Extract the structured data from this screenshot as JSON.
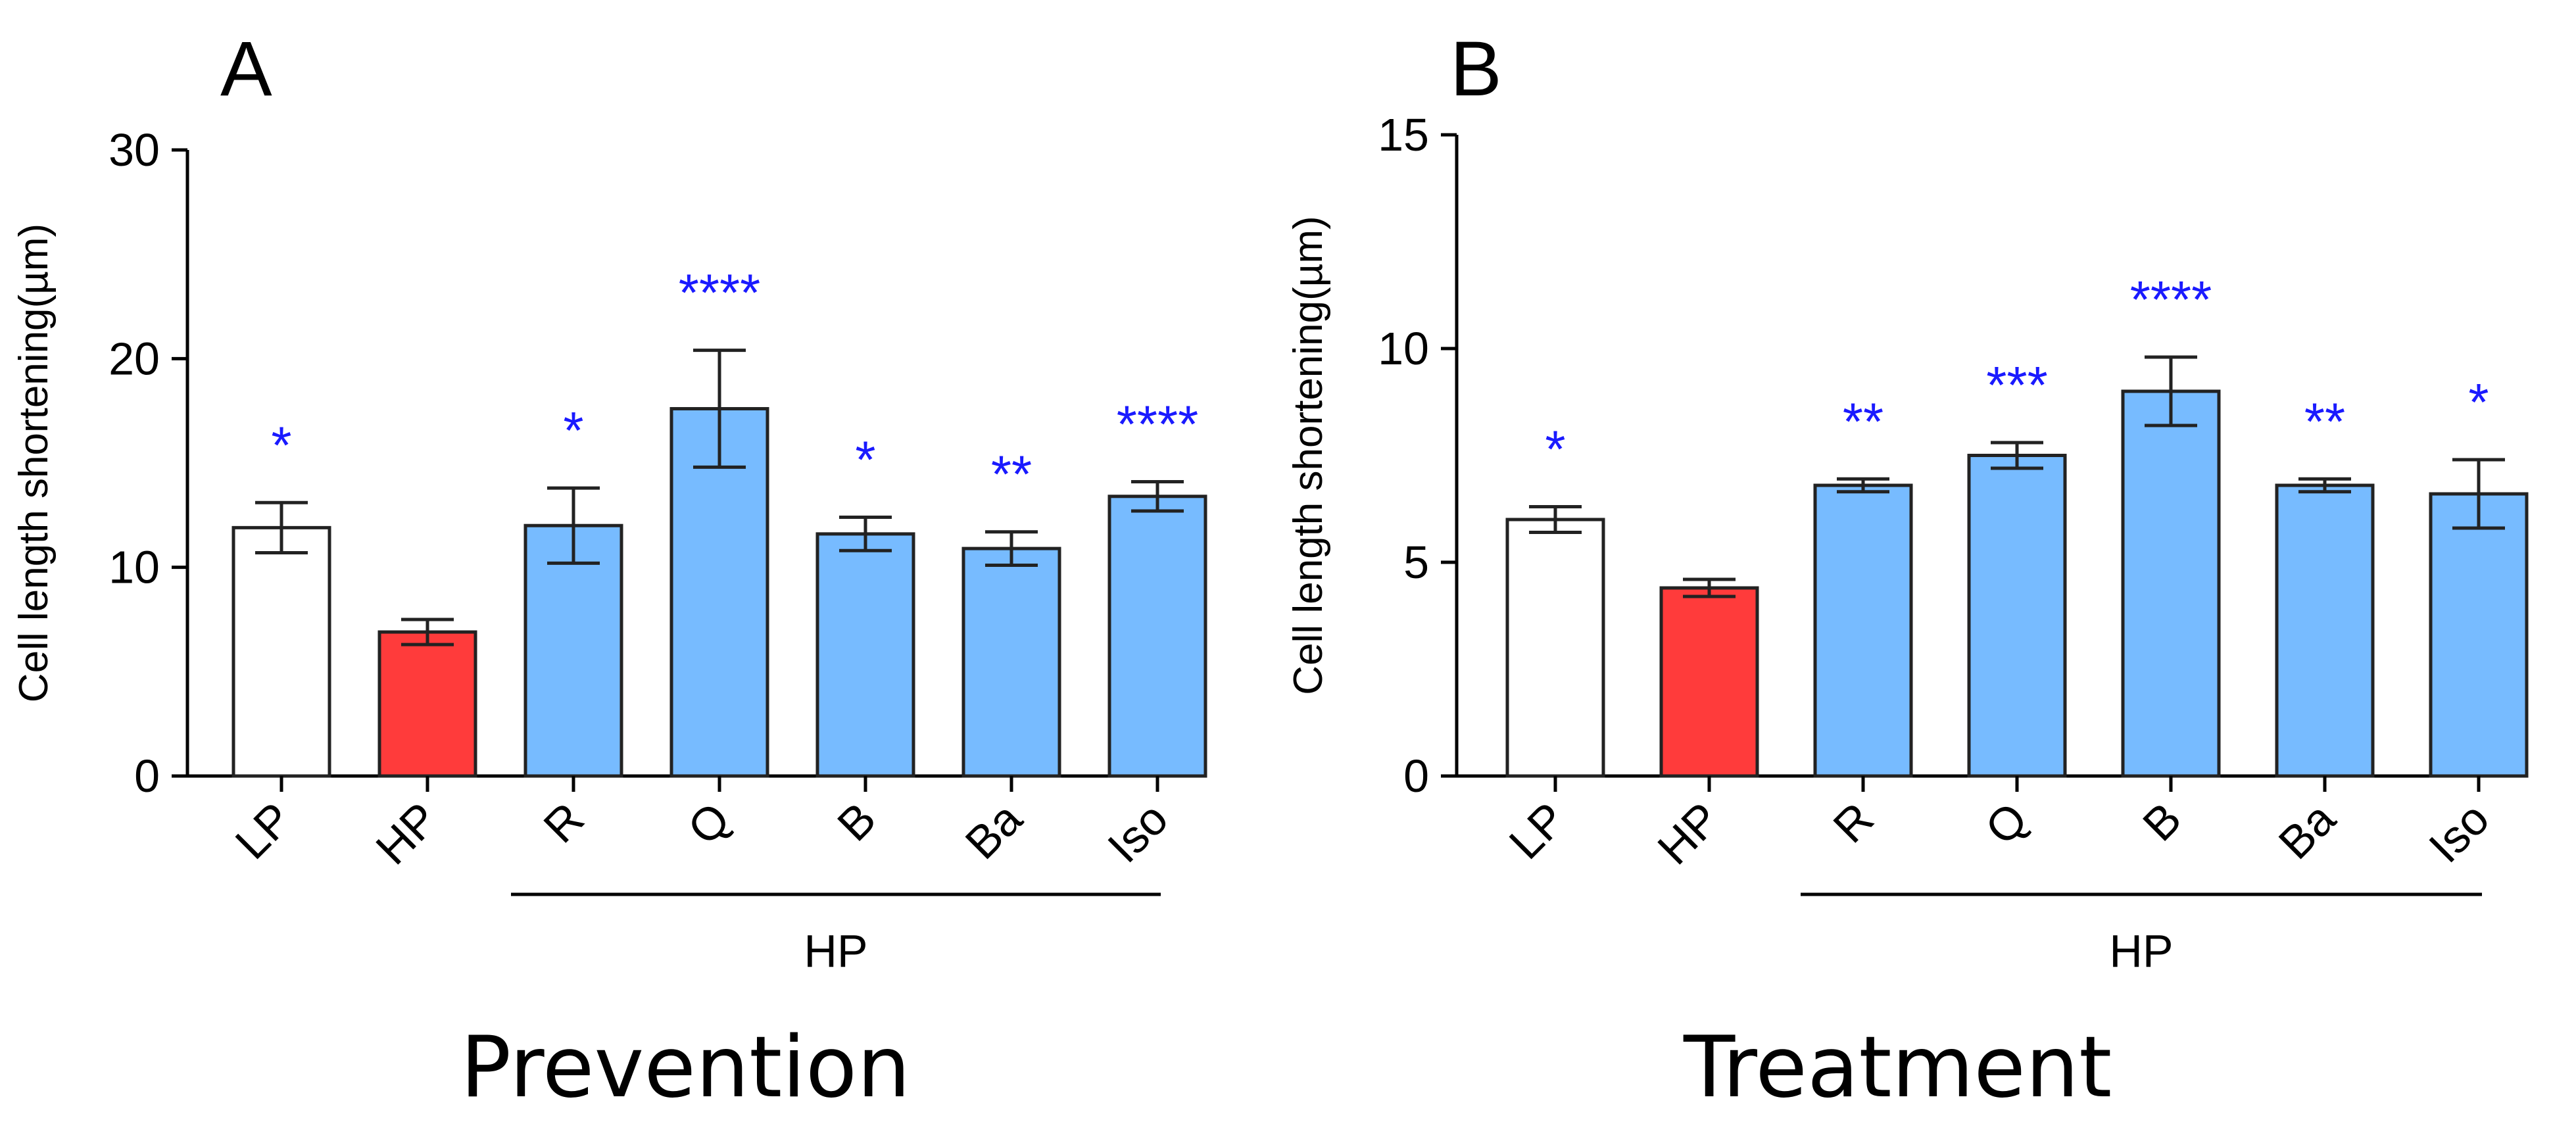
{
  "colors": {
    "control": "#ffffff",
    "hp": "#ff3b3b",
    "treated": "#77bbff",
    "significance": "#1a1aff",
    "axis": "#000000"
  },
  "panels": {
    "A": {
      "letter": "A",
      "caption": "Prevention"
    },
    "B": {
      "letter": "B",
      "caption": "Treatment"
    }
  },
  "chart_data": [
    {
      "panel": "A",
      "type": "bar",
      "title": "Prevention",
      "xlabel": "",
      "ylabel": "Cell length shortening(µm)",
      "ylim": [
        0,
        30
      ],
      "yticks": [
        0,
        10,
        20,
        30
      ],
      "categories": [
        "LP",
        "HP",
        "R",
        "Q",
        "B",
        "Ba",
        "Iso"
      ],
      "values": [
        11.9,
        6.9,
        12.0,
        17.6,
        11.6,
        10.9,
        13.4
      ],
      "errors": [
        1.2,
        0.6,
        1.8,
        2.8,
        0.8,
        0.8,
        0.7
      ],
      "significance": [
        "*",
        "",
        "*",
        "****",
        "*",
        "**",
        "****"
      ],
      "bar_groups": [
        "control",
        "hp",
        "treated",
        "treated",
        "treated",
        "treated",
        "treated"
      ],
      "group_label": "HP",
      "group_span": [
        "R",
        "Iso"
      ]
    },
    {
      "panel": "B",
      "type": "bar",
      "title": "Treatment",
      "xlabel": "",
      "ylabel": "Cell length shortening(µm)",
      "ylim": [
        0,
        15
      ],
      "yticks": [
        0,
        5,
        10,
        15
      ],
      "categories": [
        "LP",
        "HP",
        "R",
        "Q",
        "B",
        "Ba",
        "Iso"
      ],
      "values": [
        6.0,
        4.4,
        6.8,
        7.5,
        9.0,
        6.8,
        6.6
      ],
      "errors": [
        0.3,
        0.2,
        0.15,
        0.3,
        0.8,
        0.15,
        0.8
      ],
      "significance": [
        "*",
        "",
        "**",
        "***",
        "****",
        "**",
        "*"
      ],
      "bar_groups": [
        "control",
        "hp",
        "treated",
        "treated",
        "treated",
        "treated",
        "treated"
      ],
      "group_label": "HP",
      "group_span": [
        "R",
        "Iso"
      ]
    }
  ]
}
